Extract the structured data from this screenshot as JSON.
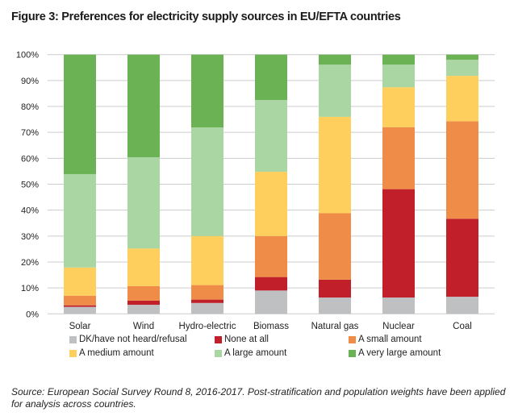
{
  "title": "Figure 3: Preferences for electricity supply sources in EU/EFTA countries",
  "source_note": "Source: European Social Survey Round 8, 2016-2017. Post-stratification and population weights have been applied for analysis across countries.",
  "chart_data": {
    "type": "bar",
    "stacked": true,
    "percent_stacked": true,
    "title": "Figure 3: Preferences for electricity supply sources in EU/EFTA countries",
    "xlabel": "",
    "ylabel": "",
    "ylim": [
      0,
      100
    ],
    "yticks": [
      0,
      10,
      20,
      30,
      40,
      50,
      60,
      70,
      80,
      90,
      100
    ],
    "ytick_labels": [
      "0%",
      "10%",
      "20%",
      "30%",
      "40%",
      "50%",
      "60%",
      "70%",
      "80%",
      "90%",
      "100%"
    ],
    "grid": true,
    "legend_position": "bottom",
    "categories": [
      "Solar",
      "Wind",
      "Hydro-electric",
      "Biomass",
      "Natural gas",
      "Nuclear",
      "Coal"
    ],
    "series": [
      {
        "name": "DK/have not heard/refusal",
        "color": "#bfc0c2",
        "values": [
          2.7,
          3.5,
          4.2,
          9.0,
          6.3,
          6.3,
          6.6
        ]
      },
      {
        "name": "None at all",
        "color": "#c1202a",
        "values": [
          0.6,
          1.6,
          1.3,
          5.2,
          6.9,
          41.8,
          30.1
        ]
      },
      {
        "name": "A small amount",
        "color": "#ee8c48",
        "values": [
          3.7,
          5.6,
          5.6,
          15.8,
          25.6,
          23.9,
          37.6
        ]
      },
      {
        "name": "A medium amount",
        "color": "#fecf5c",
        "values": [
          10.9,
          14.5,
          18.9,
          24.8,
          37.2,
          15.4,
          17.5
        ]
      },
      {
        "name": "A large amount",
        "color": "#a9d6a2",
        "values": [
          36.0,
          35.2,
          41.9,
          27.7,
          20.1,
          8.7,
          6.2
        ]
      },
      {
        "name": "A very large amount",
        "color": "#6ab254",
        "values": [
          46.1,
          39.6,
          28.1,
          17.5,
          3.9,
          3.9,
          2.0
        ]
      }
    ]
  }
}
